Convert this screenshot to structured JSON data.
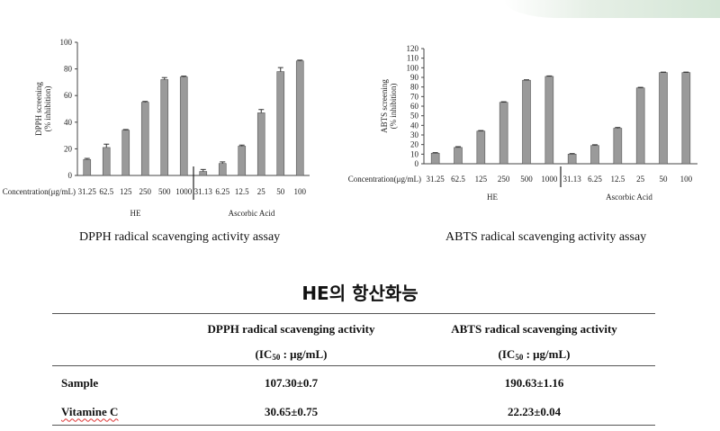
{
  "chart_data": [
    {
      "type": "bar",
      "title": "DPPH radical scavenging activity assay",
      "ylabel": "DPPH screening",
      "ylabel_sub": "(% inhibition)",
      "xlabel": "Concentration(μg/mL)",
      "ylim": [
        0,
        100
      ],
      "yticks": [
        "0",
        "20",
        "40",
        "60",
        "80",
        "100"
      ],
      "groups": [
        {
          "name": "HE",
          "categories": [
            "31.25",
            "62.5",
            "125",
            "250",
            "500",
            "1000"
          ],
          "values": [
            12,
            21,
            34,
            55,
            72,
            74
          ],
          "errors": [
            0.8,
            2.5,
            0.5,
            0.6,
            1.5,
            0.6
          ]
        },
        {
          "name": "Ascorbic Acid",
          "categories": [
            "31.13",
            "6.25",
            "12.5",
            "25",
            "50",
            "100"
          ],
          "values": [
            3,
            9,
            22,
            47,
            78,
            86
          ],
          "errors": [
            1.5,
            1.2,
            0.8,
            2.5,
            3.0,
            0.6
          ]
        }
      ],
      "bar_color": "#9a9a9a"
    },
    {
      "type": "bar",
      "title": "ABTS radical scavenging activity assay",
      "ylabel": "ABTS screening",
      "ylabel_sub": "(% inhibition)",
      "xlabel": "Concentration(μg/mL)",
      "ylim": [
        0,
        120
      ],
      "yticks": [
        "0",
        "10",
        "20",
        "30",
        "40",
        "50",
        "60",
        "70",
        "80",
        "90",
        "100",
        "110",
        "120"
      ],
      "groups": [
        {
          "name": "HE",
          "categories": [
            "31.25",
            "62.5",
            "125",
            "250",
            "500",
            "1000"
          ],
          "values": [
            11,
            17,
            34,
            64,
            87,
            91
          ],
          "errors": [
            0.6,
            0.8,
            0.6,
            0.6,
            0.5,
            0.5
          ]
        },
        {
          "name": "Ascorbic Acid",
          "categories": [
            "31.13",
            "6.25",
            "12.5",
            "25",
            "50",
            "100"
          ],
          "values": [
            10,
            19,
            37,
            79,
            95,
            95
          ],
          "errors": [
            0.6,
            0.8,
            0.8,
            0.6,
            0.5,
            0.5
          ]
        }
      ],
      "bar_color": "#9a9a9a"
    }
  ],
  "heading": "HE의 항산화능",
  "table": {
    "col1": "DPPH radical scavenging activity",
    "col2": "ABTS radical scavenging activity",
    "ic_prefix": "(IC",
    "ic_sub": "50",
    "ic_unit": " : μg/mL)",
    "rows": [
      {
        "label": "Sample",
        "dpph": "107.30±0.7",
        "abts": "190.63±1.16"
      },
      {
        "label": "Vitamine C",
        "dpph": "30.65±0.75",
        "abts": "22.23±0.04"
      }
    ]
  }
}
